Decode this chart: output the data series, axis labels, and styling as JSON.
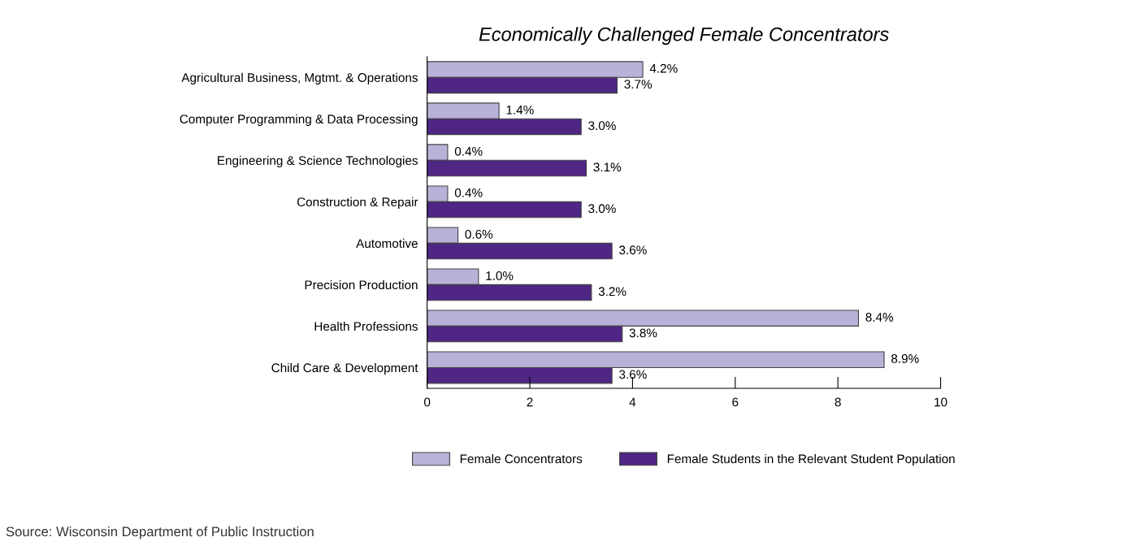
{
  "chart_data": {
    "type": "bar",
    "orientation": "horizontal",
    "title": "Economically Challenged Female Concentrators",
    "categories": [
      "Agricultural Business, Mgtmt. & Operations",
      "Computer Programming & Data Processing",
      "Engineering & Science Technologies",
      "Construction & Repair",
      "Automotive",
      "Precision Production",
      "Health Professions",
      "Child Care & Development"
    ],
    "series": [
      {
        "name": "Female Concentrators",
        "color": "#b8b2d9",
        "values": [
          4.2,
          1.4,
          0.4,
          0.4,
          0.6,
          1.0,
          8.4,
          8.9
        ],
        "value_labels": [
          "4.2%",
          "1.4%",
          "0.4%",
          "0.4%",
          "0.6%",
          "1.0%",
          "8.4%",
          "8.9%"
        ]
      },
      {
        "name": "Female Students in the Relevant Student Population",
        "color": "#4f2683",
        "values": [
          3.7,
          3.0,
          3.1,
          3.0,
          3.6,
          3.2,
          3.8,
          3.6
        ],
        "value_labels": [
          "3.7%",
          "3.0%",
          "3.1%",
          "3.0%",
          "3.6%",
          "3.2%",
          "3.8%",
          "3.6%"
        ]
      }
    ],
    "xlim": [
      0,
      10
    ],
    "xticks": [
      0,
      2,
      4,
      6,
      8,
      10
    ],
    "grid": false,
    "legend": "bottom",
    "annotations": [
      "Source: Wisconsin Department of Public Instruction"
    ]
  }
}
